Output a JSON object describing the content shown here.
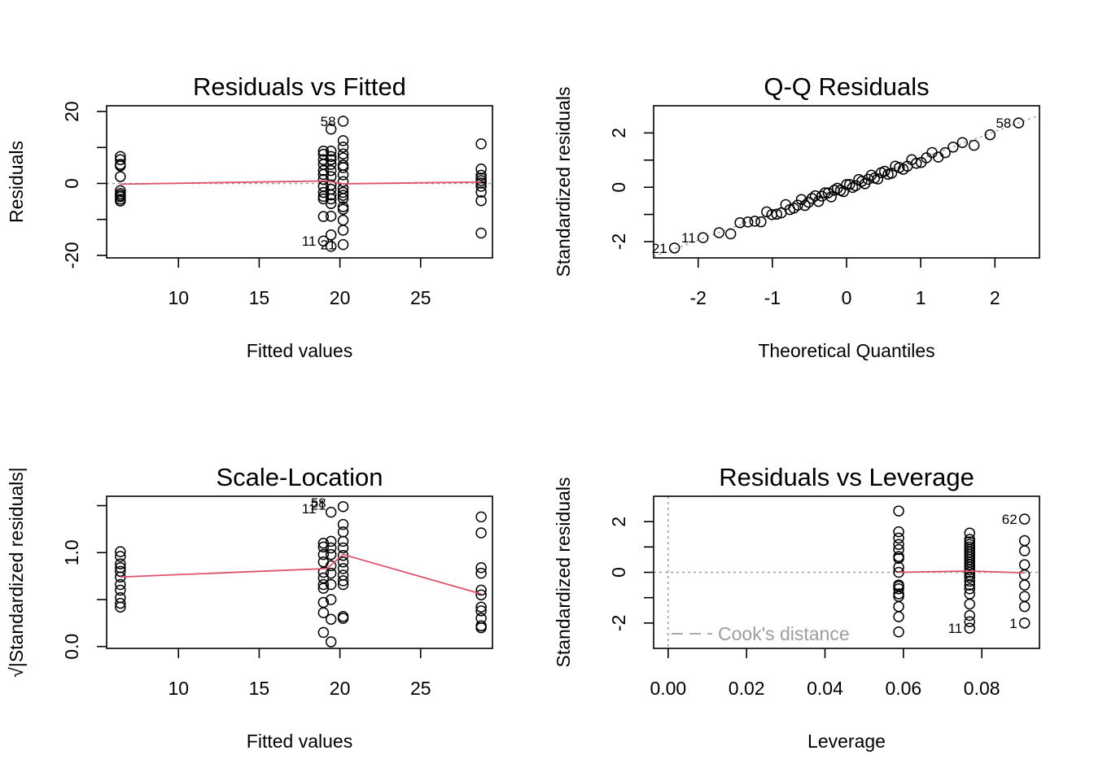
{
  "colors": {
    "smoother": "#DF536B",
    "reference": "#9E9E9E",
    "points": "#000000"
  },
  "chart_data": [
    {
      "type": "scatter",
      "title": "Residuals vs Fitted",
      "xlabel": "Fitted values",
      "ylabel": "Residuals",
      "xlim": [
        5.55,
        29.45
      ],
      "ylim": [
        -20.7,
        21.6
      ],
      "xticks": [
        10,
        15,
        20,
        25
      ],
      "yticks": [
        -20,
        0,
        20
      ],
      "yticks_minor": [
        -20,
        -10,
        0,
        10,
        20
      ],
      "reference_line": {
        "type": "horizontal",
        "y": 0,
        "style": "dotted"
      },
      "points": [
        {
          "x": 6.4,
          "y": [
            7.5,
            6.6,
            5.3,
            4.9,
            1.9,
            -2.0,
            -2.8,
            -3.3,
            -3.7,
            -4.4,
            -4.9
          ]
        },
        {
          "x": 18.98,
          "y": [
            9.0,
            8.1,
            6.6,
            5.3,
            3.6,
            2.5,
            1.1,
            -0.8,
            -2.5,
            -3.6,
            -4.3,
            -9.2,
            -16.0
          ]
        },
        {
          "x": 19.45,
          "y": [
            15.1,
            9.0,
            7.5,
            6.6,
            5.3,
            3.6,
            1.9,
            -0.4,
            -1.6,
            -3.2,
            -4.3,
            -5.6,
            -9.1,
            -14.3,
            -17.5
          ]
        },
        {
          "x": 20.2,
          "y": [
            17.3,
            11.9,
            10.1,
            8.2,
            7.1,
            5.1,
            4.4,
            2.4,
            0.5,
            -1.4,
            -2.5,
            -3.3,
            -4.2,
            -6.5,
            -7.2,
            -10.2,
            -13.0,
            -17.0
          ]
        },
        {
          "x": 28.75,
          "y": [
            11.0,
            4.0,
            2.3,
            1.5,
            0.8,
            0.1,
            -0.8,
            -2.4,
            -4.8,
            -13.8
          ]
        }
      ],
      "smoother": {
        "x": [
          6.4,
          19.2,
          20.2,
          28.75
        ],
        "y": [
          -0.2,
          0.7,
          -0.1,
          0.4
        ]
      },
      "point_labels": [
        {
          "text": "58",
          "x": 20.2,
          "y": 17.3
        },
        {
          "text": "11",
          "x": 18.98,
          "y": -16.0
        },
        {
          "text": "21",
          "x": 20.2,
          "y": -17.0
        }
      ]
    },
    {
      "type": "scatter",
      "title": "Q-Q Residuals",
      "xlabel": "Theoretical Quantiles",
      "ylabel": "Standardized residuals",
      "xlim": [
        -2.6,
        2.6
      ],
      "ylim": [
        -2.6,
        3.0
      ],
      "xticks": [
        -2,
        -1,
        0,
        1,
        2
      ],
      "yticks": [
        -2,
        0,
        2
      ],
      "yticks_minor": [
        -2,
        -1,
        0,
        1,
        2
      ],
      "reference_line": {
        "type": "line",
        "x": [
          -2.6,
          2.6
        ],
        "y": [
          -2.55,
          2.65
        ],
        "style": "dotted"
      },
      "n_points": 61,
      "point_labels": [
        {
          "text": "58",
          "index": 60
        },
        {
          "text": "21",
          "index": 0
        },
        {
          "text": "11",
          "index": 1
        }
      ]
    },
    {
      "type": "scatter",
      "title": "Scale-Location",
      "xlabel": "Fitted values",
      "ylabel": "√|Standardized residuals|",
      "xlim": [
        5.55,
        29.45
      ],
      "ylim": [
        -0.02,
        1.6
      ],
      "xticks": [
        10,
        15,
        20,
        25
      ],
      "yticks": [
        0.0,
        1.0
      ],
      "yticks_minor": [
        0.0,
        0.5,
        1.0,
        1.5
      ],
      "points": [
        {
          "x": 6.4,
          "y": [
            1.01,
            0.96,
            0.88,
            0.84,
            0.8,
            0.74,
            0.66,
            0.6,
            0.52,
            0.46,
            0.42
          ]
        },
        {
          "x": 18.98,
          "y": [
            1.1,
            1.06,
            0.98,
            0.9,
            0.79,
            0.73,
            0.66,
            0.62,
            0.47,
            0.36,
            0.15
          ]
        },
        {
          "x": 19.45,
          "y": [
            1.43,
            1.12,
            1.05,
            0.98,
            0.86,
            0.78,
            0.66,
            0.5,
            0.29,
            0.05
          ]
        },
        {
          "x": 20.2,
          "y": [
            1.49,
            1.3,
            1.22,
            1.12,
            1.05,
            0.97,
            0.9,
            0.83,
            0.76,
            0.7,
            0.66,
            0.32,
            0.3
          ]
        },
        {
          "x": 28.75,
          "y": [
            1.38,
            1.21,
            0.84,
            0.78,
            0.6,
            0.55,
            0.42,
            0.38,
            0.3,
            0.22,
            0.2
          ]
        }
      ],
      "smoother": {
        "x": [
          6.4,
          19.2,
          20.2,
          28.75
        ],
        "y": [
          0.74,
          0.83,
          0.98,
          0.56
        ]
      },
      "point_labels": [
        {
          "text": "58",
          "x": 19.6,
          "y": 1.53
        },
        {
          "text": "21",
          "x": 19.6,
          "y": 1.51
        },
        {
          "text": "11",
          "x": 18.98,
          "y": 1.47
        }
      ]
    },
    {
      "type": "scatter",
      "title": "Residuals vs Leverage",
      "xlabel": "Leverage",
      "ylabel": "Standardized residuals",
      "xlim": [
        -0.0037,
        0.0947
      ],
      "ylim": [
        -3.0,
        3.0
      ],
      "xticks": [
        0.0,
        0.02,
        0.04,
        0.06,
        0.08
      ],
      "xtick_labels": [
        "0.00",
        "0.02",
        "0.04",
        "0.06",
        "0.08"
      ],
      "yticks": [
        -2,
        0,
        2
      ],
      "yticks_minor": [
        -2,
        -1,
        0,
        1,
        2
      ],
      "reference_lines": [
        {
          "type": "horizontal",
          "y": 0,
          "style": "dotted"
        },
        {
          "type": "vertical",
          "x": 0,
          "style": "dotted"
        }
      ],
      "points": [
        {
          "x": 0.0588,
          "y": [
            2.42,
            1.6,
            1.35,
            1.1,
            0.9,
            0.62,
            0.55,
            0.2,
            0.0,
            -0.5,
            -0.55,
            -0.65,
            -0.85,
            -0.95,
            -1.35,
            -1.75,
            -2.35
          ]
        },
        {
          "x": 0.0769,
          "y": [
            1.55,
            1.3,
            1.2,
            1.1,
            1.0,
            0.9,
            0.8,
            0.7,
            0.6,
            0.5,
            0.4,
            0.3,
            0.2,
            0.1,
            0.0,
            -0.1,
            -0.2,
            -0.35,
            -0.5,
            -0.65,
            -0.85,
            -1.25,
            -1.7,
            -1.95,
            -2.2
          ]
        },
        {
          "x": 0.0909,
          "y": [
            2.1,
            1.25,
            0.85,
            0.3,
            -0.1,
            -0.5,
            -0.95,
            -1.35,
            -2.0
          ]
        }
      ],
      "smoother": {
        "x": [
          0.0588,
          0.0769,
          0.0909
        ],
        "y": [
          0.0,
          0.05,
          -0.02
        ]
      },
      "point_labels": [
        {
          "text": "62",
          "x": 0.0909,
          "y": 2.1
        },
        {
          "text": "11",
          "x": 0.0769,
          "y": -2.2
        },
        {
          "text": "1",
          "x": 0.0909,
          "y": -2.0
        }
      ],
      "legend": {
        "label": "Cook's distance",
        "position": "bottom-left",
        "style": "dashed"
      }
    }
  ]
}
